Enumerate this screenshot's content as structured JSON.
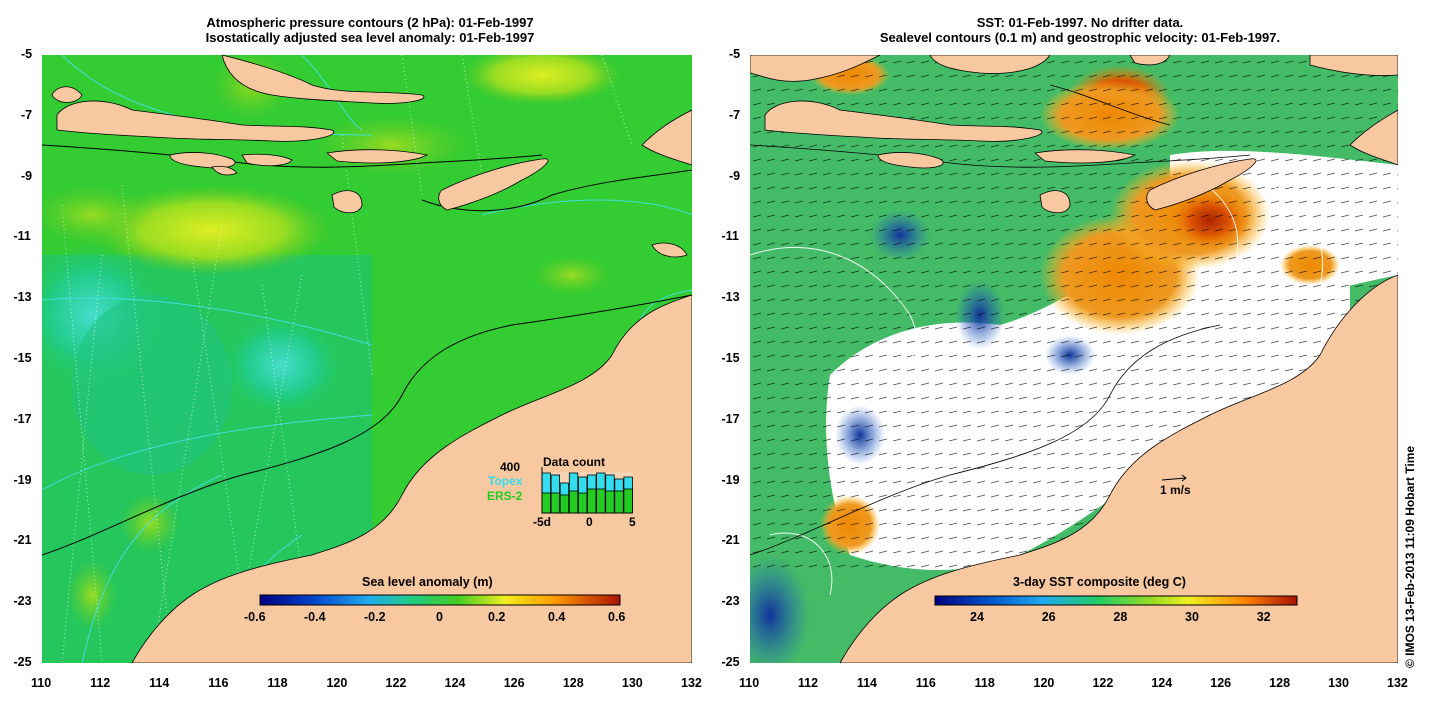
{
  "left_panel": {
    "title_line1": "Atmospheric pressure contours (2 hPa): 01-Feb-1997",
    "title_line2": "Isostatically adjusted sea level anomaly: 01-Feb-1997",
    "colorbar": {
      "label": "Sea level anomaly (m)",
      "ticks": [
        "-0.6",
        "-0.4",
        "-0.2",
        "0",
        "0.2",
        "0.4",
        "0.6"
      ]
    },
    "inset": {
      "title": "Data count",
      "max_label": "400",
      "series": [
        {
          "name": "Topex",
          "color": "#33ddee"
        },
        {
          "name": "ERS-2",
          "color": "#22cc22"
        }
      ],
      "x_ticks": [
        "-5d",
        "0",
        "5"
      ]
    }
  },
  "right_panel": {
    "title_line1": "SST: 01-Feb-1997. No drifter data.",
    "title_line2": "Sealevel contours (0.1 m) and geostrophic velocity: 01-Feb-1997.",
    "colorbar": {
      "label": "3-day SST composite (deg C)",
      "ticks": [
        "24",
        "26",
        "28",
        "30",
        "32"
      ]
    },
    "velocity_scale": "1 m/s"
  },
  "axes": {
    "x_ticks": [
      "110",
      "112",
      "114",
      "116",
      "118",
      "120",
      "122",
      "124",
      "126",
      "128",
      "130",
      "132"
    ],
    "y_ticks": [
      "-5",
      "-7",
      "-9",
      "-11",
      "-13",
      "-15",
      "-17",
      "-19",
      "-21",
      "-23",
      "-25"
    ]
  },
  "credit": "© IMOS 13-Feb-2013 11:09 Hobart Time",
  "colors": {
    "land": "#f8c8a0",
    "ocean_green": "#33cc33",
    "sst_white": "#ffffff"
  }
}
